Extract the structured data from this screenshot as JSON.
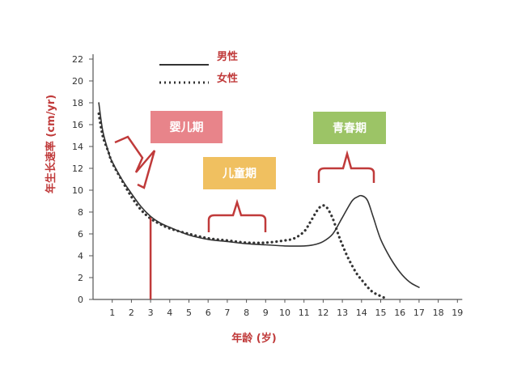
{
  "chart_data": {
    "type": "line",
    "xlabel": "年龄 (岁)",
    "ylabel": "年生长速率 (cm/yr)",
    "xlim": [
      0,
      19
    ],
    "ylim": [
      0,
      22
    ],
    "x_ticks": [
      1,
      2,
      3,
      4,
      5,
      6,
      7,
      8,
      9,
      10,
      11,
      12,
      13,
      14,
      15,
      16,
      17,
      18,
      19
    ],
    "y_ticks": [
      0,
      2,
      4,
      6,
      8,
      10,
      12,
      14,
      16,
      18,
      20,
      22
    ],
    "grid": false,
    "legend_position": "top-left",
    "series": [
      {
        "name": "男性",
        "style": "solid",
        "color": "#333333",
        "x": [
          0.3,
          0.5,
          0.8,
          1,
          1.5,
          2,
          2.5,
          3,
          3.5,
          4,
          5,
          6,
          7,
          8,
          9,
          10,
          11,
          11.5,
          12,
          12.5,
          13,
          13.5,
          13.8,
          14,
          14.3,
          14.6,
          15,
          15.5,
          16,
          16.5,
          17
        ],
        "y": [
          18,
          15.5,
          13.5,
          12.6,
          11,
          9.7,
          8.5,
          7.6,
          7,
          6.6,
          5.9,
          5.5,
          5.3,
          5.1,
          5,
          4.9,
          4.9,
          5,
          5.3,
          6,
          7.5,
          9,
          9.4,
          9.5,
          9.1,
          7.6,
          5.5,
          3.8,
          2.5,
          1.6,
          1.1
        ]
      },
      {
        "name": "女性",
        "style": "dotted",
        "color": "#333333",
        "x": [
          0.3,
          0.5,
          0.8,
          1,
          1.5,
          2,
          2.5,
          3,
          3.5,
          4,
          5,
          6,
          7,
          8,
          9,
          10,
          10.5,
          11,
          11.3,
          11.6,
          11.8,
          12,
          12.2,
          12.5,
          12.8,
          13,
          13.3,
          13.7,
          14,
          14.5,
          15,
          15.3
        ],
        "y": [
          17,
          15,
          13.5,
          12.5,
          10.9,
          9.4,
          8.2,
          7.4,
          6.9,
          6.5,
          6,
          5.6,
          5.4,
          5.2,
          5.2,
          5.4,
          5.6,
          6.2,
          7,
          7.9,
          8.4,
          8.6,
          8.4,
          7.4,
          5.9,
          5,
          3.8,
          2.5,
          1.8,
          0.8,
          0.3,
          0.1
        ]
      }
    ],
    "annotations": {
      "vertical_line": {
        "x": 3,
        "color": "#c03a3a"
      },
      "phases": [
        {
          "label": "婴儿期",
          "color": "#e8848a"
        },
        {
          "label": "儿童期",
          "color": "#f0c060"
        },
        {
          "label": "青春期",
          "color": "#9cc466"
        }
      ]
    }
  }
}
